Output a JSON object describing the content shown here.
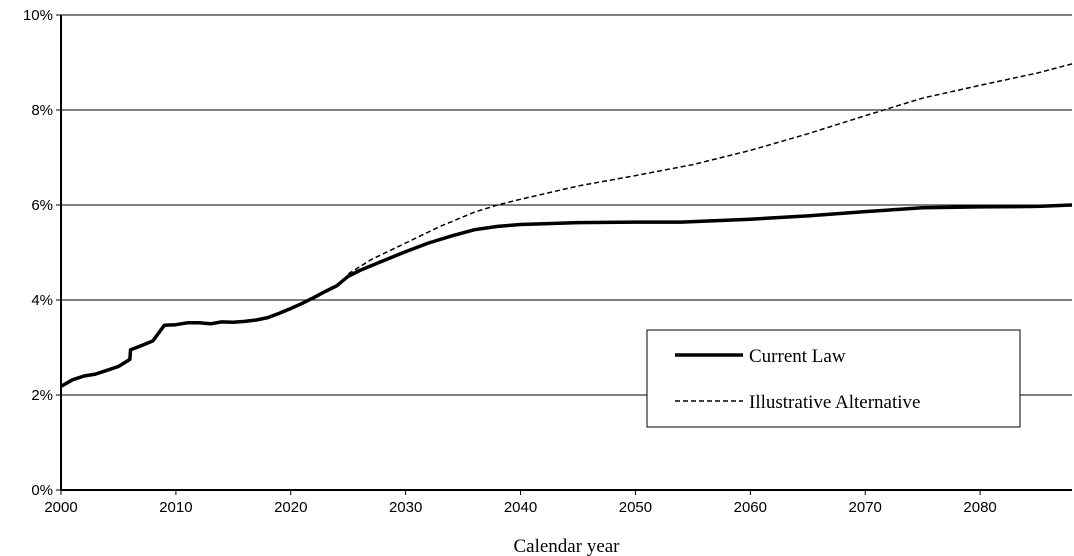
{
  "chart_data": {
    "type": "line",
    "title": "",
    "xlabel": "Calendar year",
    "ylabel": "",
    "xlim": [
      2000,
      2088
    ],
    "ylim": [
      0,
      10
    ],
    "x_ticks": [
      2000,
      2010,
      2020,
      2030,
      2040,
      2050,
      2060,
      2070,
      2080
    ],
    "y_ticks": [
      0,
      2,
      4,
      6,
      8,
      10
    ],
    "y_tick_labels": [
      "0%",
      "2%",
      "4%",
      "6%",
      "8%",
      "10%"
    ],
    "grid": "horizontal",
    "legend_position": "lower-right",
    "series": [
      {
        "name": "Current Law",
        "style": "solid-thick",
        "color": "#000000",
        "points": [
          [
            2000,
            2.18
          ],
          [
            2001,
            2.32
          ],
          [
            2002,
            2.4
          ],
          [
            2003,
            2.44
          ],
          [
            2004,
            2.52
          ],
          [
            2005,
            2.6
          ],
          [
            2006,
            2.75
          ],
          [
            2006.05,
            2.95
          ],
          [
            2007,
            3.04
          ],
          [
            2008,
            3.14
          ],
          [
            2009,
            3.47
          ],
          [
            2010,
            3.48
          ],
          [
            2011,
            3.52
          ],
          [
            2012,
            3.52
          ],
          [
            2013,
            3.5
          ],
          [
            2014,
            3.54
          ],
          [
            2015,
            3.53
          ],
          [
            2016,
            3.55
          ],
          [
            2017,
            3.58
          ],
          [
            2018,
            3.63
          ],
          [
            2019,
            3.72
          ],
          [
            2020,
            3.82
          ],
          [
            2021,
            3.93
          ],
          [
            2022,
            4.05
          ],
          [
            2023,
            4.18
          ],
          [
            2024,
            4.3
          ],
          [
            2025,
            4.5
          ],
          [
            2026,
            4.62
          ],
          [
            2028,
            4.82
          ],
          [
            2030,
            5.02
          ],
          [
            2032,
            5.2
          ],
          [
            2034,
            5.35
          ],
          [
            2036,
            5.48
          ],
          [
            2038,
            5.55
          ],
          [
            2040,
            5.59
          ],
          [
            2045,
            5.63
          ],
          [
            2050,
            5.64
          ],
          [
            2054,
            5.64
          ],
          [
            2060,
            5.7
          ],
          [
            2065,
            5.77
          ],
          [
            2070,
            5.86
          ],
          [
            2075,
            5.94
          ],
          [
            2080,
            5.96
          ],
          [
            2085,
            5.97
          ],
          [
            2088,
            6.0
          ]
        ]
      },
      {
        "name": "Illustrative Alternative",
        "style": "dashed-thin",
        "color": "#000000",
        "points": [
          [
            2025,
            4.55
          ],
          [
            2027,
            4.85
          ],
          [
            2030,
            5.2
          ],
          [
            2033,
            5.55
          ],
          [
            2036,
            5.85
          ],
          [
            2038,
            6.0
          ],
          [
            2040,
            6.12
          ],
          [
            2045,
            6.4
          ],
          [
            2050,
            6.62
          ],
          [
            2055,
            6.85
          ],
          [
            2060,
            7.15
          ],
          [
            2065,
            7.5
          ],
          [
            2070,
            7.88
          ],
          [
            2075,
            8.25
          ],
          [
            2080,
            8.52
          ],
          [
            2085,
            8.78
          ],
          [
            2088,
            8.97
          ]
        ]
      }
    ]
  }
}
